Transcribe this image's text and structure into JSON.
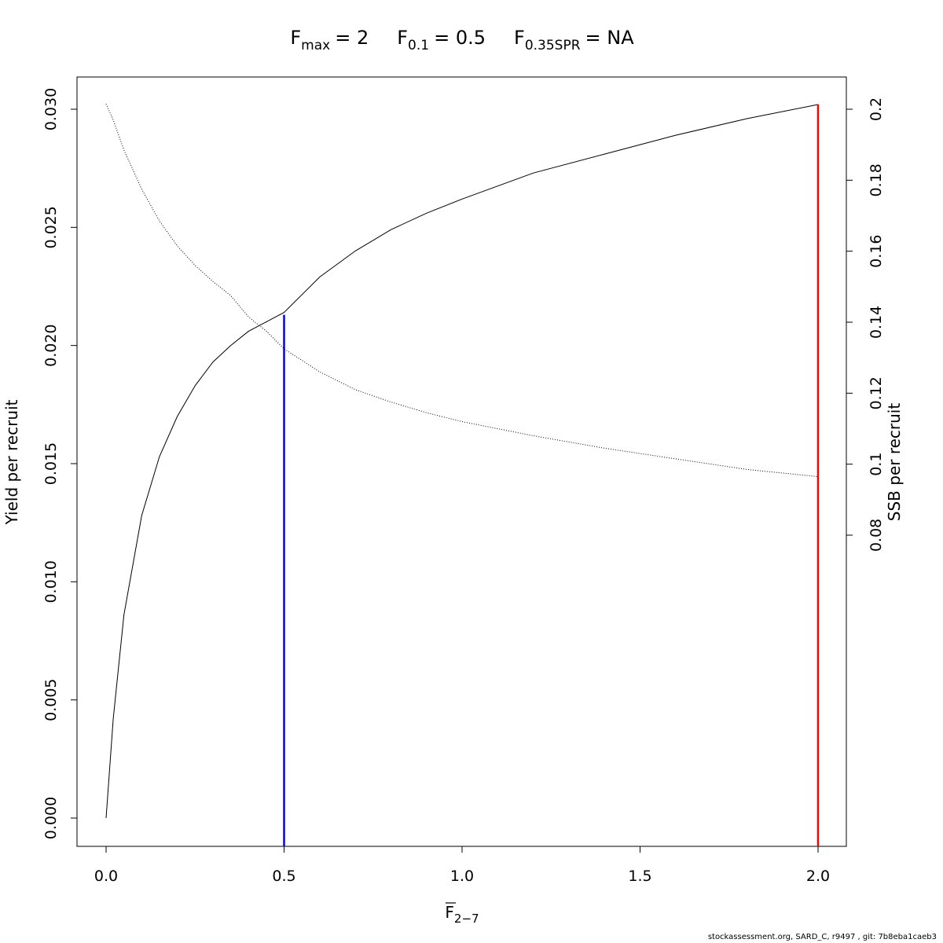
{
  "chart_data": {
    "type": "line",
    "title_parts": [
      {
        "base": "F",
        "sub": "max",
        "value": "= 2"
      },
      {
        "base": "F",
        "sub": "0.1",
        "value": "= 0.5"
      },
      {
        "base": "F",
        "sub": "0.35SPR",
        "value": "= NA"
      }
    ],
    "xlabel": {
      "base": "F",
      "sub": "2−7"
    },
    "ylabel_left": "Yield per recruit",
    "ylabel_right": "SSB per recruit",
    "xlim": [
      0,
      2
    ],
    "ylim_left": [
      0,
      0.03
    ],
    "ylim_right": [
      0.08,
      0.2
    ],
    "x_ticks": [
      "0.0",
      "0.5",
      "1.0",
      "1.5",
      "2.0"
    ],
    "y_left_ticks": [
      "0.000",
      "0.005",
      "0.010",
      "0.015",
      "0.020",
      "0.025",
      "0.030"
    ],
    "y_right_ticks": [
      "0.08",
      "0.1",
      "0.12",
      "0.14",
      "0.16",
      "0.18",
      "0.2"
    ],
    "grid": false,
    "series": [
      {
        "name": "Yield per recruit",
        "axis": "left",
        "style": "solid",
        "color": "#000000",
        "x": [
          0,
          0.02,
          0.05,
          0.1,
          0.15,
          0.2,
          0.25,
          0.3,
          0.35,
          0.4,
          0.45,
          0.5,
          0.6,
          0.7,
          0.8,
          0.9,
          1.0,
          1.2,
          1.4,
          1.6,
          1.8,
          2.0
        ],
        "y": [
          0,
          0.0042,
          0.0086,
          0.0128,
          0.0153,
          0.017,
          0.0183,
          0.0193,
          0.02,
          0.0206,
          0.021,
          0.0214,
          0.0229,
          0.024,
          0.0249,
          0.0256,
          0.0262,
          0.0273,
          0.0281,
          0.0289,
          0.0296,
          0.0302
        ]
      },
      {
        "name": "SSB per recruit",
        "axis": "right",
        "style": "dotted",
        "color": "#000000",
        "x": [
          0,
          0.02,
          0.05,
          0.1,
          0.15,
          0.2,
          0.25,
          0.3,
          0.35,
          0.4,
          0.45,
          0.5,
          0.6,
          0.7,
          0.8,
          0.9,
          1.0,
          1.2,
          1.4,
          1.6,
          1.8,
          2.0
        ],
        "y": [
          0.2015,
          0.197,
          0.1885,
          0.1775,
          0.1685,
          0.1615,
          0.156,
          0.1515,
          0.1475,
          0.1415,
          0.1375,
          0.1325,
          0.126,
          0.121,
          0.1175,
          0.1145,
          0.112,
          0.108,
          0.1045,
          0.1015,
          0.0985,
          0.0965
        ]
      }
    ],
    "reference_lines": [
      {
        "name": "F0.1",
        "x": 0.5,
        "y_top": 0.0213,
        "color": "#0000ff"
      },
      {
        "name": "Fmax",
        "x": 2.0,
        "y_top": 0.0302,
        "color": "#ff0000"
      }
    ]
  },
  "footer_text": "stockassessment.org, SARD_C, r9497 , git: 7b8eba1caeb3"
}
